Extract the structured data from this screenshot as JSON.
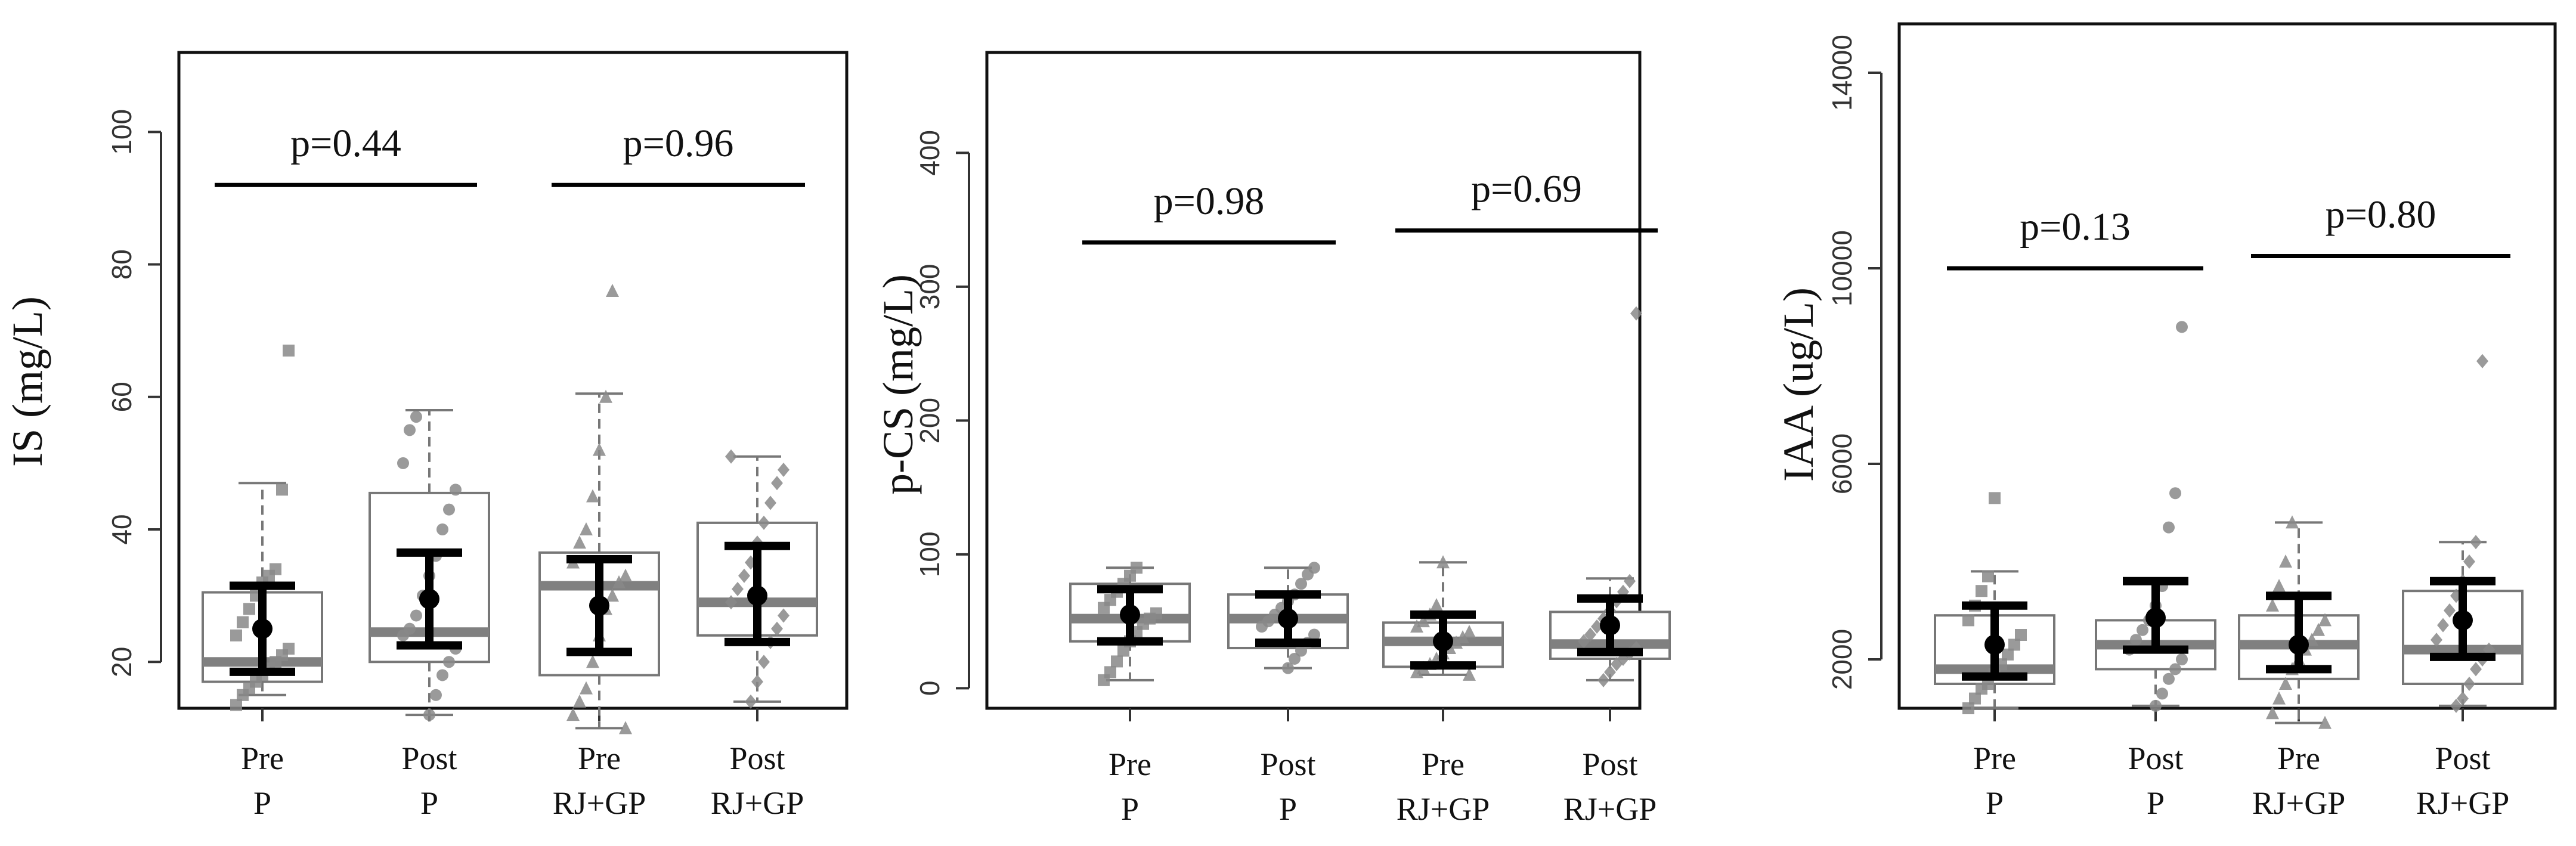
{
  "chart_data": [
    {
      "type": "box",
      "ylabel": "IS (mg/L)",
      "ylim": [
        13,
        112
      ],
      "yticks": [
        20,
        40,
        60,
        80,
        100
      ],
      "groups": [
        {
          "line1": "Pre",
          "line2": "P",
          "box": {
            "q1": 17,
            "median": 20,
            "q3": 30.5,
            "whisker_low": 15,
            "whisker_high": 47
          },
          "mean": 25,
          "ci": [
            18.5,
            31.5
          ],
          "points": [
            13.5,
            15,
            16,
            17,
            18,
            19,
            20,
            21,
            22,
            24,
            26,
            28,
            30,
            32,
            33,
            34,
            46,
            67
          ]
        },
        {
          "line1": "Post",
          "line2": "P",
          "box": {
            "q1": 20,
            "median": 24.5,
            "q3": 45.5,
            "whisker_low": 12,
            "whisker_high": 58
          },
          "mean": 29.5,
          "ci": [
            22.5,
            36.5
          ],
          "points": [
            12,
            15,
            18,
            20,
            22,
            24,
            25,
            27,
            30,
            33,
            36,
            40,
            43,
            46,
            50,
            55,
            57
          ]
        },
        {
          "line1": "Pre",
          "line2": "RJ+GP",
          "box": {
            "q1": 18,
            "median": 31.5,
            "q3": 36.5,
            "whisker_low": 10,
            "whisker_high": 60.5
          },
          "mean": 28.5,
          "ci": [
            21.5,
            35.5
          ],
          "points": [
            10,
            12,
            14,
            16,
            20,
            24,
            28,
            30,
            32,
            33,
            35,
            38,
            40,
            45,
            52,
            60,
            76
          ]
        },
        {
          "line1": "Post",
          "line2": "RJ+GP",
          "box": {
            "q1": 24,
            "median": 29,
            "q3": 41,
            "whisker_low": 14,
            "whisker_high": 51
          },
          "mean": 30,
          "ci": [
            23,
            37.5
          ],
          "points": [
            14,
            17,
            20,
            23,
            25,
            27,
            29,
            31,
            33,
            35,
            38,
            41,
            44,
            47,
            49,
            51
          ]
        }
      ],
      "comparisons": [
        {
          "label": "p=0.44",
          "from": 0,
          "to": 1,
          "y": 92
        },
        {
          "label": "p=0.96",
          "from": 2,
          "to": 3,
          "y": 92
        }
      ]
    },
    {
      "type": "box",
      "ylabel": "p-CS (mg/L)",
      "ylim": [
        -15,
        475
      ],
      "yticks": [
        0,
        100,
        200,
        300,
        400
      ],
      "groups": [
        {
          "line1": "Pre",
          "line2": "P",
          "box": {
            "q1": 35,
            "median": 52,
            "q3": 78,
            "whisker_low": 6,
            "whisker_high": 90
          },
          "mean": 55,
          "ci": [
            35,
            74
          ],
          "points": [
            6,
            12,
            20,
            28,
            35,
            42,
            48,
            52,
            56,
            60,
            66,
            72,
            78,
            84,
            90
          ]
        },
        {
          "line1": "Post",
          "line2": "P",
          "box": {
            "q1": 30,
            "median": 52,
            "q3": 70,
            "whisker_low": 15,
            "whisker_high": 90
          },
          "mean": 52,
          "ci": [
            34,
            70
          ],
          "points": [
            15,
            22,
            28,
            34,
            40,
            46,
            50,
            55,
            60,
            65,
            70,
            78,
            85,
            90
          ]
        },
        {
          "line1": "Pre",
          "line2": "RJ+GP",
          "box": {
            "q1": 16,
            "median": 35,
            "q3": 49,
            "whisker_low": 10,
            "whisker_high": 94
          },
          "mean": 35,
          "ci": [
            17,
            55
          ],
          "points": [
            10,
            12,
            15,
            18,
            22,
            26,
            30,
            34,
            38,
            42,
            46,
            50,
            55,
            62,
            94
          ]
        },
        {
          "line1": "Post",
          "line2": "RJ+GP",
          "box": {
            "q1": 22,
            "median": 33,
            "q3": 57,
            "whisker_low": 6,
            "whisker_high": 82
          },
          "mean": 47,
          "ci": [
            27,
            67
          ],
          "points": [
            6,
            12,
            18,
            22,
            26,
            30,
            35,
            40,
            46,
            52,
            58,
            65,
            72,
            80,
            280
          ]
        }
      ],
      "comparisons": [
        {
          "label": "p=0.98",
          "from": 0,
          "to": 1,
          "y": 333
        },
        {
          "label": "p=0.69",
          "from": 2,
          "to": 3,
          "y": 342
        }
      ]
    },
    {
      "type": "box",
      "ylabel": "IAA (ug/L)",
      "ylim": [
        1000,
        15000
      ],
      "yticks": [
        2000,
        6000,
        10000,
        14000
      ],
      "groups": [
        {
          "line1": "Pre",
          "line2": "P",
          "box": {
            "q1": 1500,
            "median": 1800,
            "q3": 2900,
            "whisker_low": 1000,
            "whisker_high": 3800
          },
          "mean": 2300,
          "ci": [
            1650,
            3100
          ],
          "points": [
            1000,
            1200,
            1400,
            1500,
            1700,
            1900,
            2100,
            2300,
            2500,
            2800,
            3100,
            3400,
            3700,
            5300
          ]
        },
        {
          "line1": "Post",
          "line2": "P",
          "box": {
            "q1": 1800,
            "median": 2300,
            "q3": 2800,
            "whisker_low": 1050,
            "whisker_high": 3600
          },
          "mean": 2850,
          "ci": [
            2200,
            3600
          ],
          "points": [
            1050,
            1300,
            1600,
            1800,
            2000,
            2200,
            2400,
            2600,
            2800,
            3100,
            3500,
            4700,
            5400,
            8800
          ]
        },
        {
          "line1": "Pre",
          "line2": "RJ+GP",
          "box": {
            "q1": 1600,
            "median": 2300,
            "q3": 2900,
            "whisker_low": 700,
            "whisker_high": 4800
          },
          "mean": 2300,
          "ci": [
            1800,
            3300
          ],
          "points": [
            700,
            900,
            1200,
            1500,
            1800,
            2000,
            2200,
            2400,
            2600,
            2800,
            3100,
            3500,
            4000,
            4800
          ]
        },
        {
          "line1": "Post",
          "line2": "RJ+GP",
          "box": {
            "q1": 1500,
            "median": 2200,
            "q3": 3400,
            "whisker_low": 1050,
            "whisker_high": 4400
          },
          "mean": 2800,
          "ci": [
            2050,
            3600
          ],
          "points": [
            1050,
            1200,
            1500,
            1800,
            2000,
            2200,
            2400,
            2700,
            3000,
            3300,
            3600,
            4000,
            4400,
            8100
          ]
        }
      ],
      "comparisons": [
        {
          "label": "p=0.13",
          "from": 0,
          "to": 1,
          "y": 10000
        },
        {
          "label": "p=0.80",
          "from": 2,
          "to": 3,
          "y": 10250
        }
      ]
    }
  ]
}
